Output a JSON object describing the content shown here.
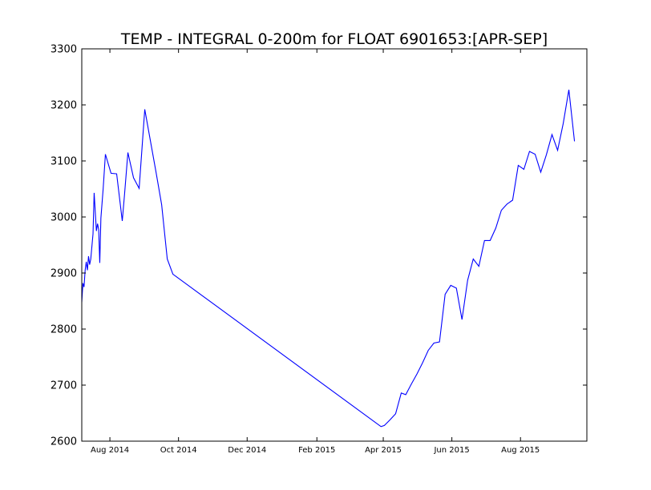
{
  "chart_data": {
    "type": "line",
    "title": "TEMP - INTEGRAL 0-200m for FLOAT 6901653:[APR-SEP]",
    "xlabel": "",
    "ylabel": "",
    "ylim": [
      2600,
      3300
    ],
    "xlim": [
      "2014-07-07",
      "2015-09-29"
    ],
    "yticks": [
      2600,
      2700,
      2800,
      2900,
      3000,
      3100,
      3200,
      3300
    ],
    "xticks": [
      {
        "date": "2014-08-01",
        "label": "Aug 2014"
      },
      {
        "date": "2014-10-01",
        "label": "Oct 2014"
      },
      {
        "date": "2014-12-01",
        "label": "Dec 2014"
      },
      {
        "date": "2015-02-01",
        "label": "Feb 2015"
      },
      {
        "date": "2015-04-01",
        "label": "Apr 2015"
      },
      {
        "date": "2015-06-01",
        "label": "Jun 2015"
      },
      {
        "date": "2015-08-01",
        "label": "Aug 2015"
      }
    ],
    "grid": false,
    "line_color": "#0000ff",
    "series": [
      {
        "points": [
          [
            "2014-07-07",
            2848
          ],
          [
            "2014-07-08",
            2882
          ],
          [
            "2014-07-09",
            2875
          ],
          [
            "2014-07-10",
            2905
          ],
          [
            "2014-07-11",
            2920
          ],
          [
            "2014-07-12",
            2905
          ],
          [
            "2014-07-13",
            2930
          ],
          [
            "2014-07-14",
            2915
          ],
          [
            "2014-07-15",
            2925
          ],
          [
            "2014-07-17",
            2970
          ],
          [
            "2014-07-18",
            3043
          ],
          [
            "2014-07-20",
            2975
          ],
          [
            "2014-07-21",
            2988
          ],
          [
            "2014-07-22",
            2978
          ],
          [
            "2014-07-23",
            2918
          ],
          [
            "2014-07-24",
            2998
          ],
          [
            "2014-07-26",
            3050
          ],
          [
            "2014-07-28",
            3112
          ],
          [
            "2014-08-02",
            3078
          ],
          [
            "2014-08-07",
            3077
          ],
          [
            "2014-08-12",
            2993
          ],
          [
            "2014-08-14",
            3040
          ],
          [
            "2014-08-17",
            3115
          ],
          [
            "2014-08-22",
            3070
          ],
          [
            "2014-08-27",
            3051
          ],
          [
            "2014-09-01",
            3192
          ],
          [
            "2014-09-11",
            3080
          ],
          [
            "2014-09-16",
            3022
          ],
          [
            "2014-09-21",
            2925
          ],
          [
            "2014-09-26",
            2898
          ],
          [
            "2015-03-30",
            2626
          ],
          [
            "2015-04-02",
            2628
          ],
          [
            "2015-04-07",
            2638
          ],
          [
            "2015-04-12",
            2649
          ],
          [
            "2015-04-17",
            2686
          ],
          [
            "2015-04-21",
            2683
          ],
          [
            "2015-04-26",
            2702
          ],
          [
            "2015-05-01",
            2720
          ],
          [
            "2015-05-06",
            2740
          ],
          [
            "2015-05-11",
            2762
          ],
          [
            "2015-05-16",
            2775
          ],
          [
            "2015-05-21",
            2777
          ],
          [
            "2015-05-26",
            2862
          ],
          [
            "2015-05-31",
            2878
          ],
          [
            "2015-06-05",
            2873
          ],
          [
            "2015-06-10",
            2817
          ],
          [
            "2015-06-15",
            2887
          ],
          [
            "2015-06-20",
            2925
          ],
          [
            "2015-06-25",
            2912
          ],
          [
            "2015-06-30",
            2958
          ],
          [
            "2015-07-05",
            2958
          ],
          [
            "2015-07-10",
            2980
          ],
          [
            "2015-07-15",
            3012
          ],
          [
            "2015-07-20",
            3023
          ],
          [
            "2015-07-25",
            3030
          ],
          [
            "2015-07-30",
            3092
          ],
          [
            "2015-08-04",
            3085
          ],
          [
            "2015-08-09",
            3117
          ],
          [
            "2015-08-14",
            3112
          ],
          [
            "2015-08-19",
            3080
          ],
          [
            "2015-08-24",
            3111
          ],
          [
            "2015-08-29",
            3147
          ],
          [
            "2015-09-03",
            3119
          ],
          [
            "2015-09-08",
            3167
          ],
          [
            "2015-09-13",
            3227
          ],
          [
            "2015-09-18",
            3135
          ]
        ]
      }
    ]
  }
}
